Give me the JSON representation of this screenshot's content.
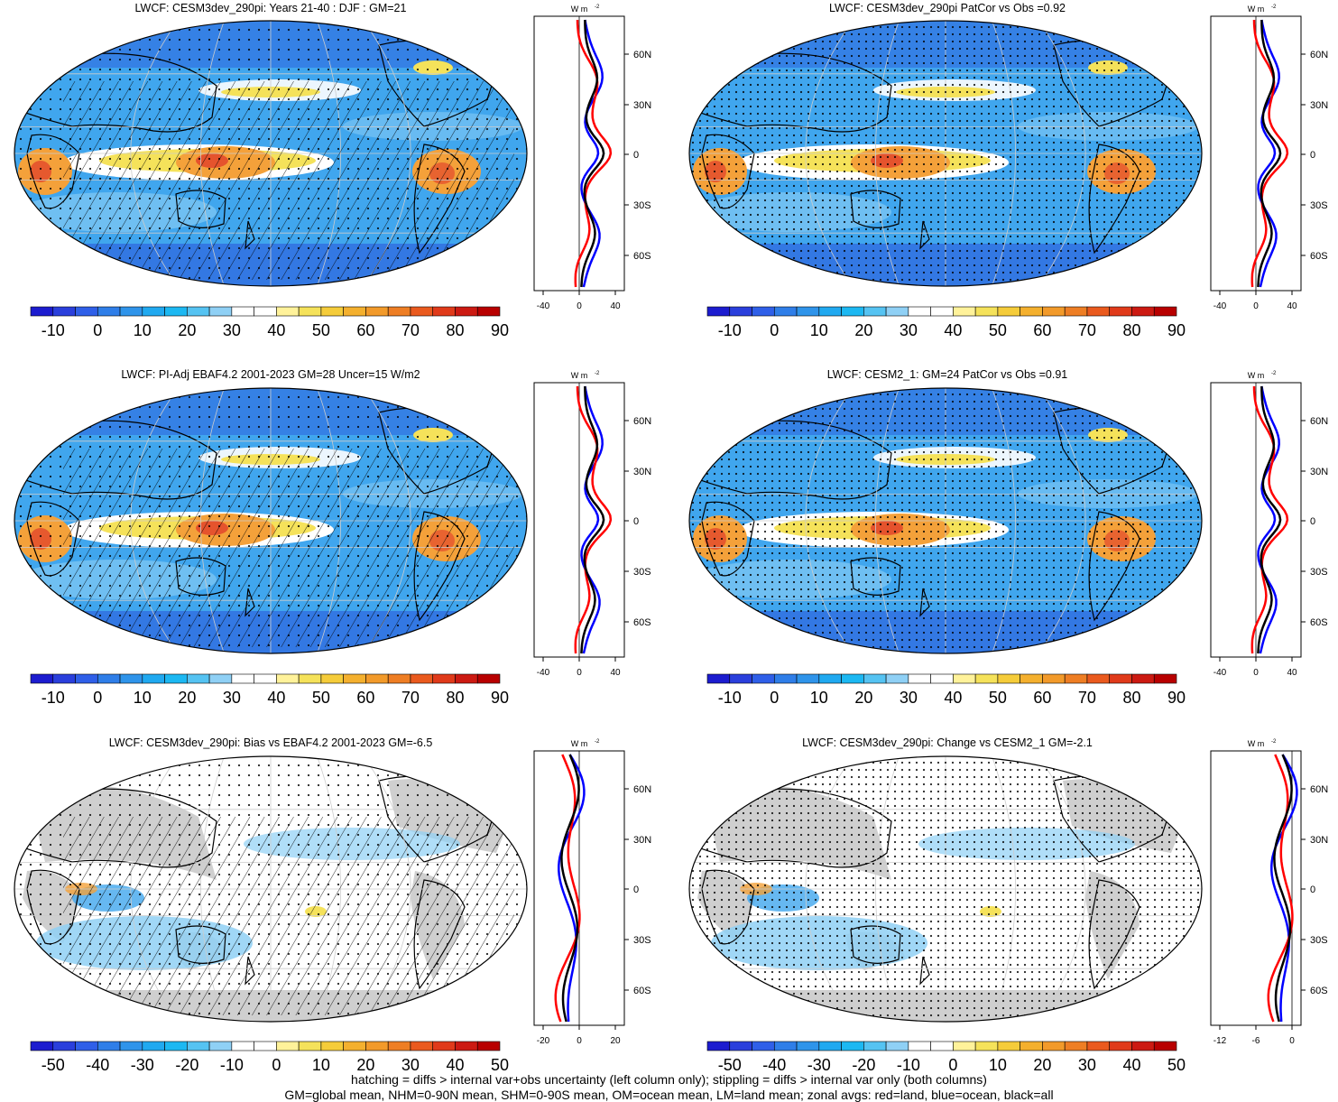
{
  "colors": {
    "ocean_low": "#2f6de0",
    "ocean_mid": "#40a6ee",
    "ocean_light": "#8fd0f5",
    "neutral": "#ffffff",
    "yellow": "#f5e25a",
    "orange": "#f4a13a",
    "red": "#e03a2a",
    "land_gray": "#cfcfcf",
    "line_all": "#000000",
    "line_land": "#ff0000",
    "line_ocean": "#0000ff"
  },
  "colorbars": {
    "absolute": {
      "colors": [
        "#1c1ccf",
        "#2a3fdc",
        "#2f5fe8",
        "#2f7ee8",
        "#2f94ea",
        "#20a9f0",
        "#1cb8f2",
        "#55c3f2",
        "#8fd0f5",
        "#ffffff",
        "#ffffff",
        "#fff29a",
        "#f5e25a",
        "#f5cc3a",
        "#f4b02e",
        "#f29a2a",
        "#ee7e24",
        "#ea5a1e",
        "#e03a1a",
        "#cc1a12",
        "#b80000"
      ],
      "labels": [
        "-10",
        "0",
        "10",
        "20",
        "30",
        "40",
        "50",
        "60",
        "70",
        "80",
        "90"
      ]
    },
    "difference": {
      "colors": [
        "#1c1ccf",
        "#2a3fdc",
        "#2f5fe8",
        "#2f7ee8",
        "#2f94ea",
        "#20a9f0",
        "#1cb8f2",
        "#55c3f2",
        "#8fd0f5",
        "#ffffff",
        "#ffffff",
        "#fff29a",
        "#f5e25a",
        "#f5cc3a",
        "#f4b02e",
        "#f29a2a",
        "#ee7e24",
        "#ea5a1e",
        "#e03a1a",
        "#cc1a12",
        "#b80000"
      ],
      "labels": [
        "-50",
        "-40",
        "-30",
        "-20",
        "-10",
        "0",
        "10",
        "20",
        "30",
        "40",
        "50"
      ]
    }
  },
  "panels": [
    {
      "title": "LWCF: CESM3dev_290pi: Years 21-40 : DJF : GM=21",
      "style": "absolute",
      "hatch": true,
      "stipple": "sparse",
      "profile": {
        "unit": "W m",
        "x_ticks": [
          "-40",
          "0",
          "40"
        ],
        "y_ticks": [
          "60N",
          "30N",
          "0",
          "30S",
          "60S"
        ]
      }
    },
    {
      "title": "LWCF: CESM3dev_290pi PatCor vs Obs =0.92",
      "style": "absolute",
      "hatch": false,
      "stipple": "dense",
      "profile": {
        "unit": "W m",
        "x_ticks": [
          "-40",
          "0",
          "40"
        ],
        "y_ticks": [
          "60N",
          "30N",
          "0",
          "30S",
          "60S"
        ]
      }
    },
    {
      "title": "LWCF: PI-Adj EBAF4.2 2001-2023 GM=28 Uncer=15 W/m2",
      "style": "absolute",
      "hatch": true,
      "stipple": "sparse",
      "profile": {
        "unit": "W m",
        "x_ticks": [
          "-40",
          "0",
          "40"
        ],
        "y_ticks": [
          "60N",
          "30N",
          "0",
          "30S",
          "60S"
        ]
      }
    },
    {
      "title": "LWCF: CESM2_1: GM=24 PatCor vs Obs =0.91",
      "style": "absolute",
      "hatch": false,
      "stipple": "dense",
      "profile": {
        "unit": "W m",
        "x_ticks": [
          "-40",
          "0",
          "40"
        ],
        "y_ticks": [
          "60N",
          "30N",
          "0",
          "30S",
          "60S"
        ]
      }
    },
    {
      "title": "LWCF: CESM3dev_290pi: Bias vs EBAF4.2 2001-2023 GM=-6.5",
      "style": "difference",
      "hatch": true,
      "stipple": "sparse",
      "profile": {
        "unit": "W m",
        "x_ticks": [
          "-20",
          "0",
          "20"
        ],
        "y_ticks": [
          "60N",
          "30N",
          "0",
          "30S",
          "60S"
        ]
      }
    },
    {
      "title": "LWCF: CESM3dev_290pi: Change vs CESM2_1 GM=-2.1",
      "style": "difference",
      "hatch": false,
      "stipple": "dense",
      "profile": {
        "unit": "W m",
        "x_ticks": [
          "-12",
          "-6",
          "0"
        ],
        "y_ticks": [
          "60N",
          "30N",
          "0",
          "30S",
          "60S"
        ]
      }
    }
  ],
  "footer": {
    "line1": "hatching = diffs > internal var+obs uncertainty (left column only); stippling = diffs > internal var only (both columns)",
    "line2": "GM=global mean, NHM=0-90N mean, SHM=0-90S mean, OM=ocean mean, LM=land mean; zonal avgs: red=land, blue=ocean, black=all"
  }
}
